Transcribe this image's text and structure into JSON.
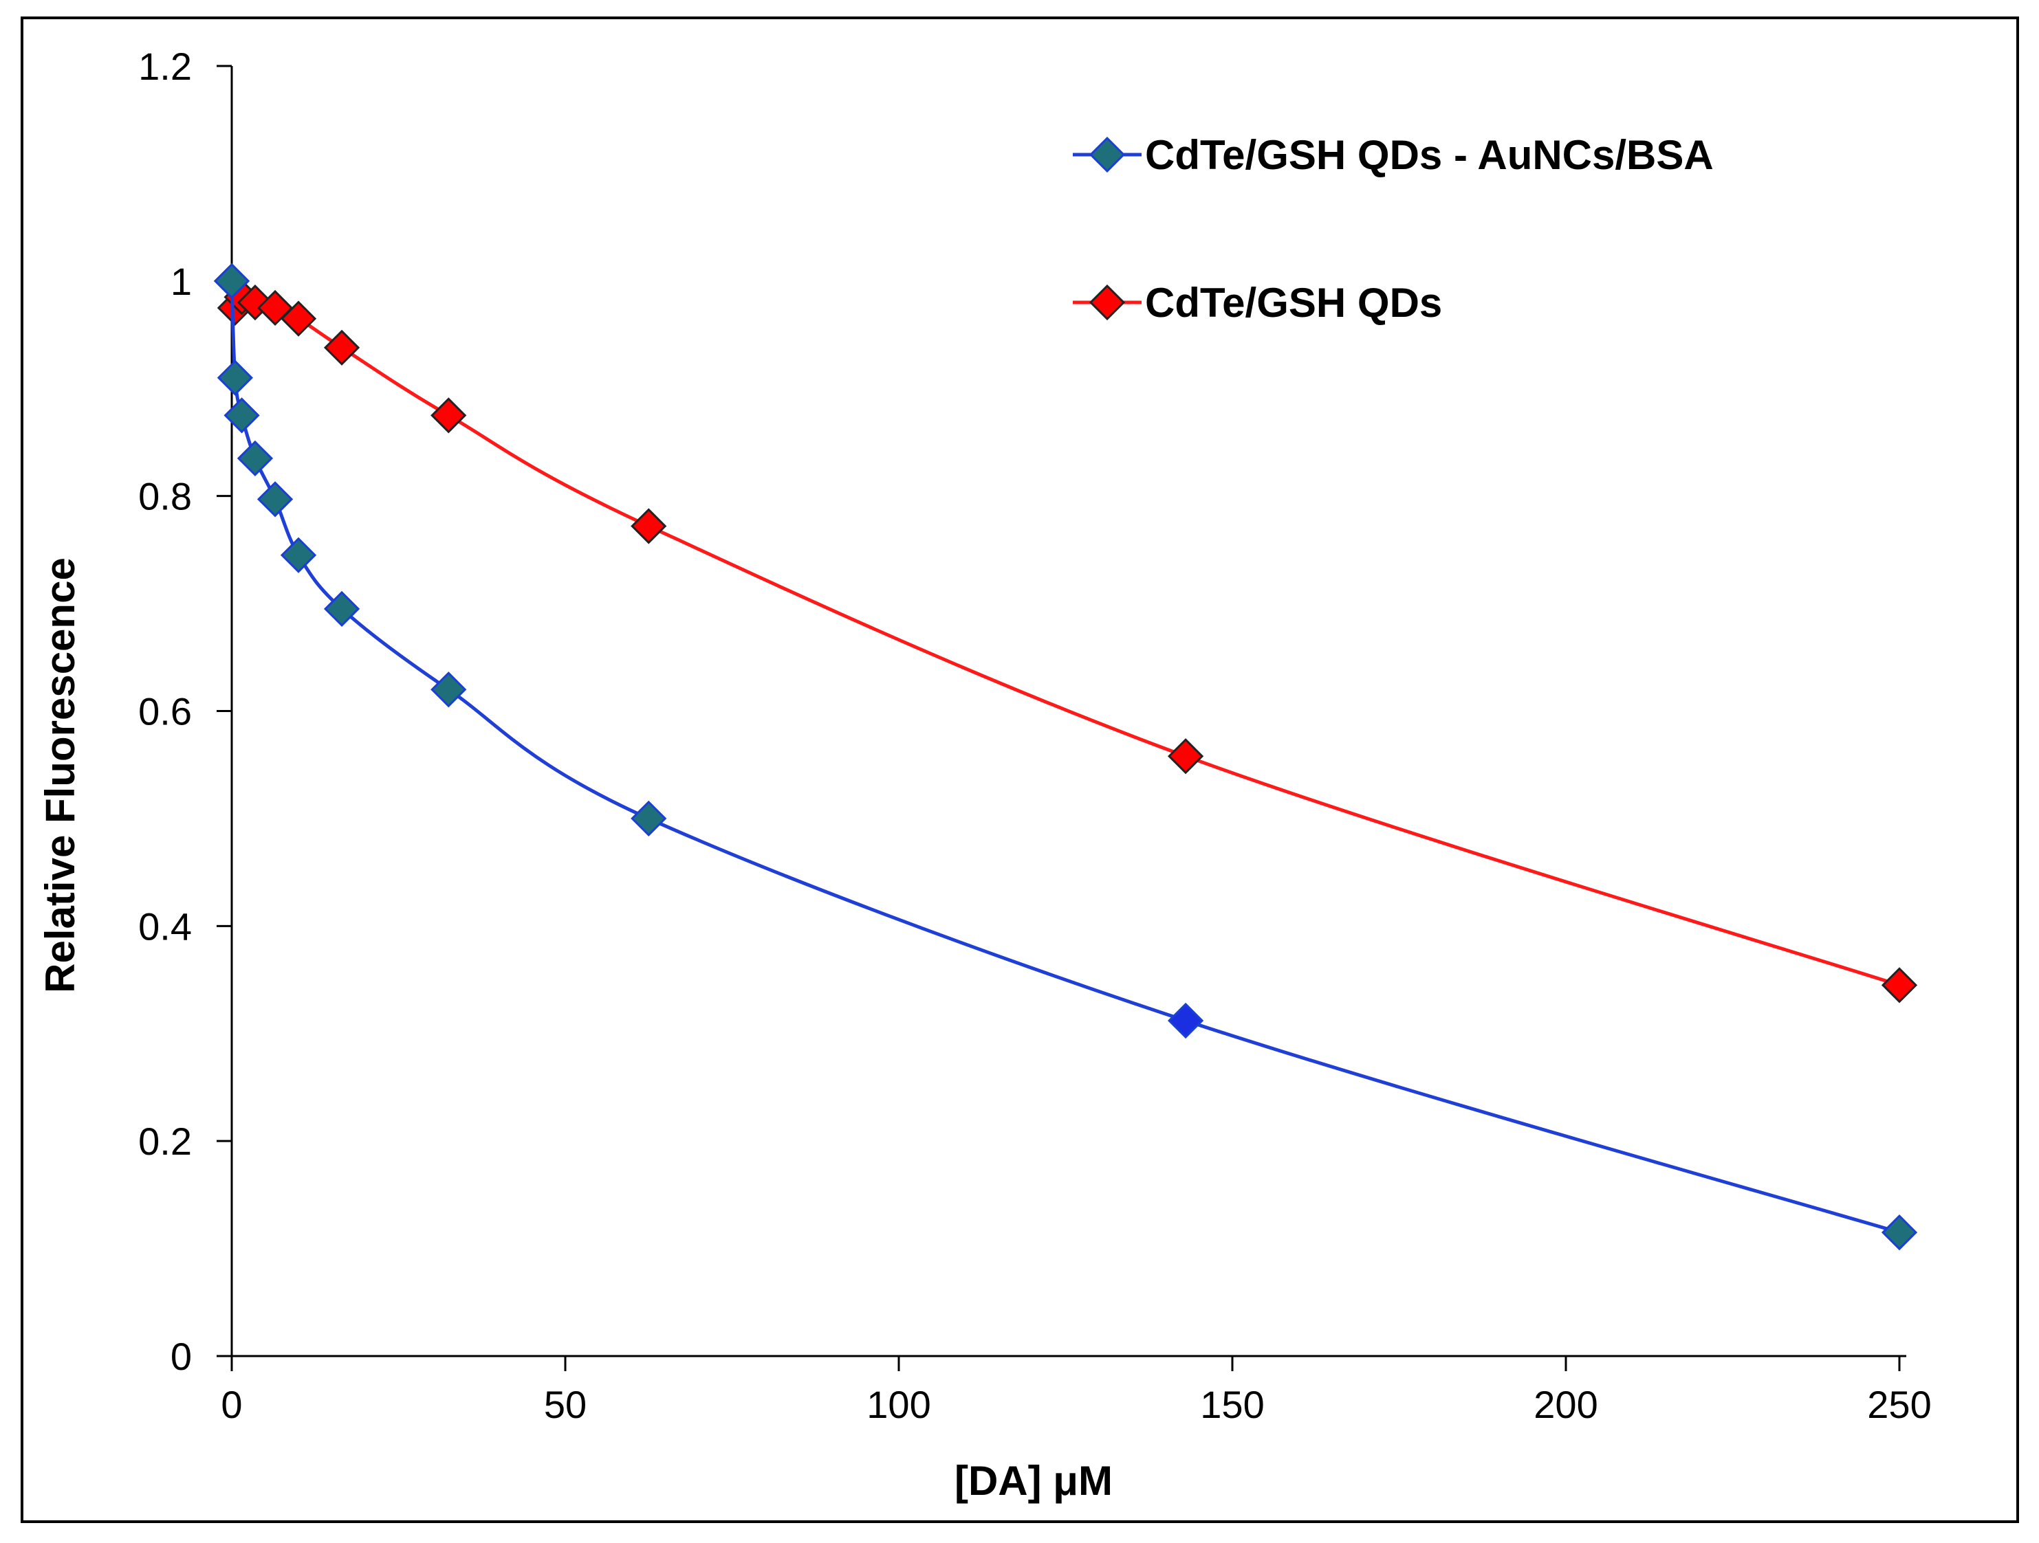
{
  "chart_data": {
    "type": "line",
    "title": "",
    "xlabel": "[DA] μM",
    "ylabel": "Relative Fluorescence",
    "xlim": [
      0,
      250
    ],
    "ylim": [
      0,
      1.2
    ],
    "x_ticks": [
      "0",
      "50",
      "100",
      "150",
      "200",
      "250"
    ],
    "y_ticks": [
      "0",
      "0.2",
      "0.4",
      "0.6",
      "0.8",
      "1",
      "1.2"
    ],
    "grid": false,
    "legend_position": "top-right",
    "series": [
      {
        "name": "CdTe/GSH QDs - AuNCs/BSA",
        "line_color": "#1f3fd6",
        "marker_color": "#1f6f7a",
        "marker_edge_color": "#1a3fd6",
        "marker": "diamond",
        "x": [
          0,
          0.5,
          1.5,
          3.5,
          6.5,
          10,
          16.5,
          32.5,
          62.5,
          143,
          250
        ],
        "y": [
          1.0,
          0.91,
          0.875,
          0.835,
          0.797,
          0.745,
          0.695,
          0.62,
          0.5,
          0.312,
          0.115
        ]
      },
      {
        "name": "CdTe/GSH QDs",
        "line_color": "#ff1a1a",
        "marker_color": "#ff0000",
        "marker_edge_color": "#222222",
        "marker": "diamond",
        "x": [
          0,
          0.5,
          1.5,
          3.5,
          6.5,
          10,
          16.5,
          32.5,
          62.5,
          143,
          250
        ],
        "y": [
          1.0,
          0.975,
          0.985,
          0.98,
          0.975,
          0.965,
          0.938,
          0.875,
          0.772,
          0.558,
          0.345
        ]
      }
    ]
  }
}
